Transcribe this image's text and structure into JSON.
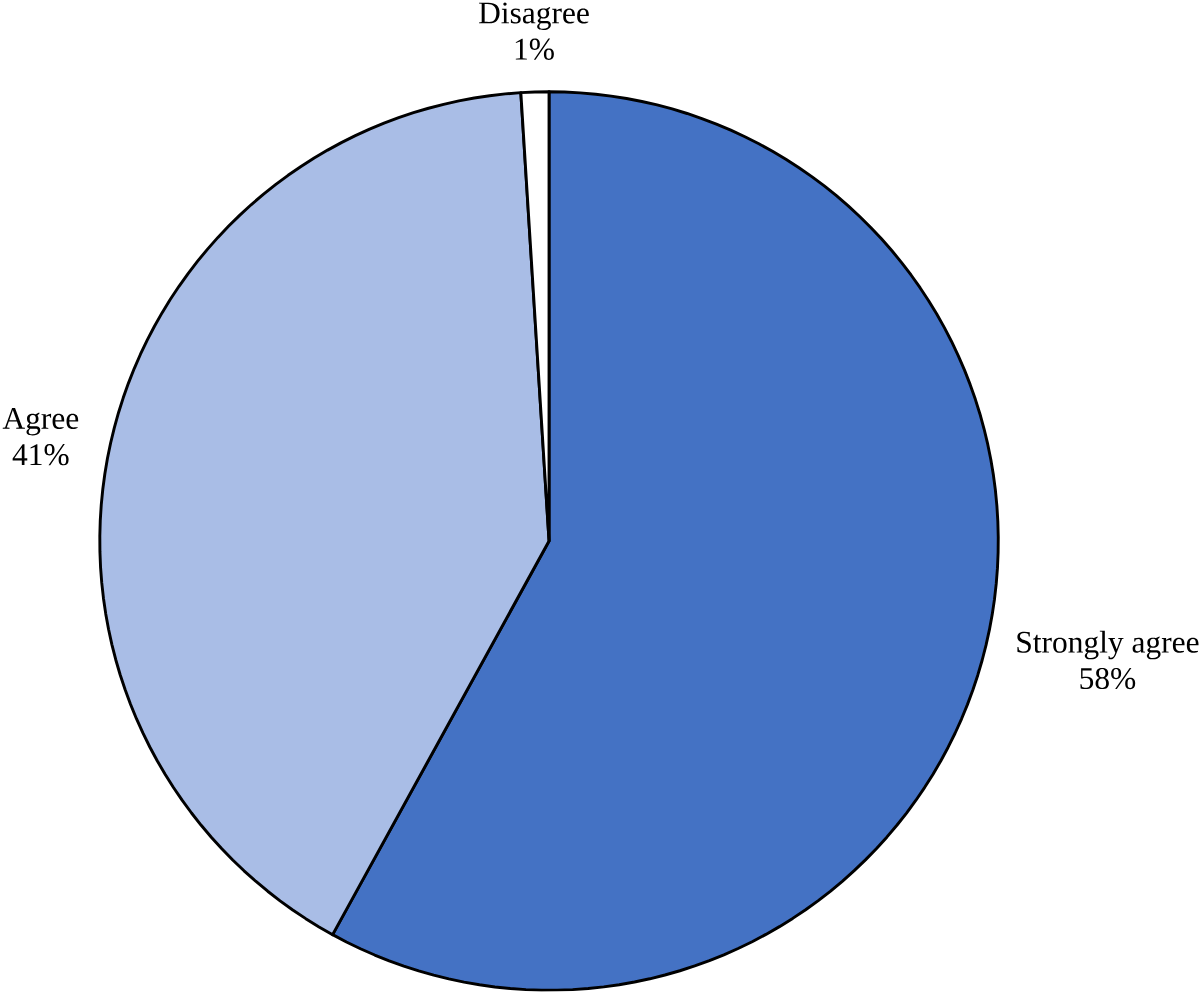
{
  "chart_data": {
    "type": "pie",
    "categories": [
      "Strongly agree",
      "Agree",
      "Disagree"
    ],
    "values": [
      58,
      41,
      1
    ],
    "colors": [
      "#4472c4",
      "#a9bde6",
      "#ffffff"
    ],
    "value_labels": [
      "58%",
      "41%",
      "1%"
    ]
  }
}
